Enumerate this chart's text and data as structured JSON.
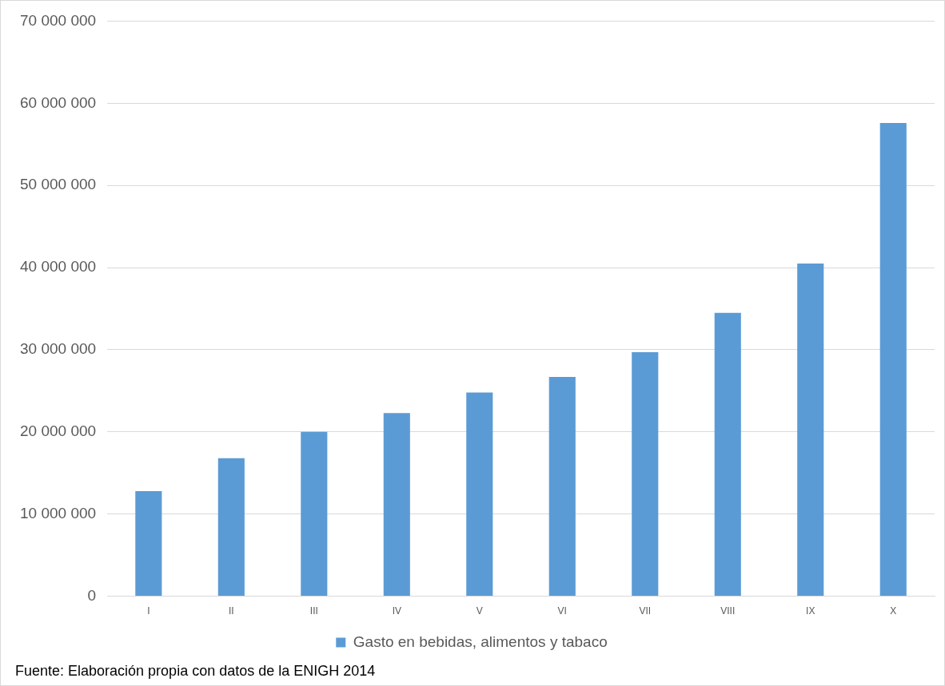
{
  "chart_data": {
    "type": "bar",
    "categories": [
      "I",
      "II",
      "III",
      "IV",
      "V",
      "VI",
      "VII",
      "VIII",
      "IX",
      "X"
    ],
    "series": [
      {
        "name": "Gasto en bebidas, alimentos y tabaco",
        "color": "#5b9bd5",
        "values": [
          12800000,
          16800000,
          20000000,
          22300000,
          24800000,
          26700000,
          29700000,
          34500000,
          40500000,
          57600000
        ]
      }
    ],
    "ylim": [
      0,
      70000000
    ],
    "yticks": [
      0,
      10000000,
      20000000,
      30000000,
      40000000,
      50000000,
      60000000,
      70000000
    ],
    "grid": "y",
    "legend": "bottom",
    "annotations": [
      "Fuente: Elaboración propia con datos de la ENIGH 2014"
    ]
  }
}
